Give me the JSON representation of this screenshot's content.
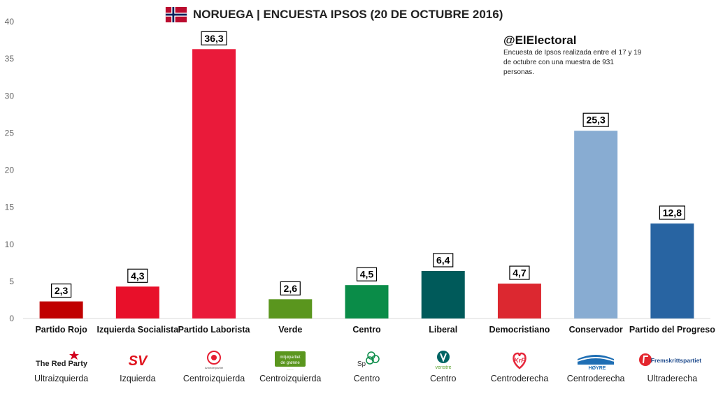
{
  "title": "NORUEGA | ENCUESTA IPSOS (20 DE OCTUBRE 2016)",
  "annotation": {
    "handle": "@ElElectoral",
    "note": "Encuesta de Ipsos realizada entre el 17 y 19 de octubre con una muestra de 931 personas."
  },
  "chart_data": {
    "type": "bar",
    "title": "NORUEGA | ENCUESTA IPSOS (20 DE OCTUBRE 2016)",
    "xlabel": "",
    "ylabel": "",
    "ylim": [
      0,
      40
    ],
    "yticks": [
      0,
      5,
      10,
      15,
      20,
      25,
      30,
      35,
      40
    ],
    "grid": false,
    "categories": [
      "Partido Rojo",
      "Izquierda Socialista",
      "Partido Laborista",
      "Verde",
      "Centro",
      "Liberal",
      "Democristiano",
      "Conservador",
      "Partido del Progreso"
    ],
    "values": [
      2.3,
      4.3,
      36.3,
      2.6,
      4.5,
      6.4,
      4.7,
      25.3,
      12.8
    ],
    "data_labels": [
      "2,3",
      "4,3",
      "36,3",
      "2,6",
      "4,5",
      "6,4",
      "4,7",
      "25,3",
      "12,8"
    ],
    "colors": [
      "#c00000",
      "#e8102a",
      "#ea1a3a",
      "#5a961e",
      "#0a8c48",
      "#005a5a",
      "#dc2830",
      "#88acd2",
      "#2864a2"
    ]
  },
  "logos": [
    {
      "icon": "red-party-logo",
      "text": "The Red Party",
      "color": "#d2001e"
    },
    {
      "icon": "sv-logo",
      "text": "SV",
      "color": "#e0141e"
    },
    {
      "icon": "arbeiderpartiet-logo",
      "text": "Arbeiderpartiet",
      "color": "#e61e32"
    },
    {
      "icon": "miljopartiet-logo",
      "text": "miljøpartiet de grønne",
      "color": "#5a961e"
    },
    {
      "icon": "senterpartiet-logo",
      "text": "Sp",
      "color": "#0a8c48"
    },
    {
      "icon": "venstre-logo",
      "text": "venstre",
      "color": "#006464"
    },
    {
      "icon": "krf-logo",
      "text": "KrF",
      "color": "#e6283c"
    },
    {
      "icon": "hoyre-logo",
      "text": "HØYRE",
      "color": "#1e6eb4"
    },
    {
      "icon": "frp-logo",
      "text": "Fremskrittspartiet",
      "color": "#1e4a8c"
    }
  ],
  "ideology": [
    "Ultraizquierda",
    "Izquierda",
    "Centroizquierda",
    "Centroizquierda",
    "Centro",
    "Centro",
    "Centroderecha",
    "Centroderecha",
    "Ultraderecha"
  ]
}
